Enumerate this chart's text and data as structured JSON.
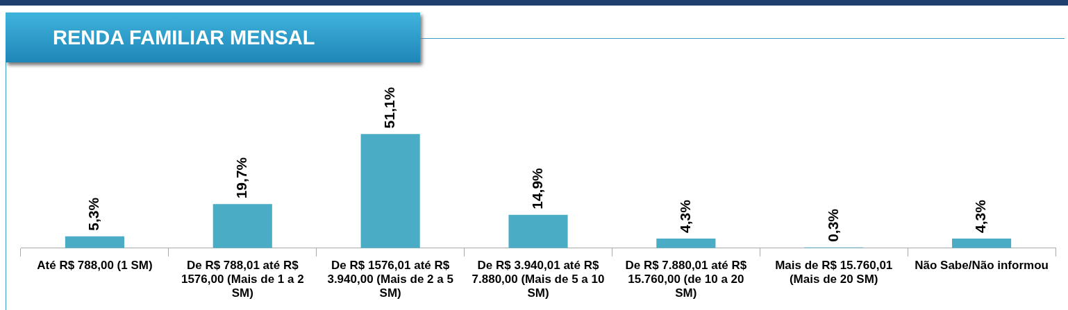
{
  "chart_data": {
    "type": "bar",
    "title": "RENDA FAMILIAR MENSAL",
    "categories": [
      "Até R$ 788,00 (1 SM)",
      "De R$ 788,01 até R$ 1576,00 (Mais de 1 a 2 SM)",
      "De R$ 1576,01 até R$ 3.940,00 (Mais de 2 a 5 SM)",
      "De R$ 3.940,01 até R$ 7.880,00 (Mais de 5 a 10 SM)",
      "De R$ 7.880,01 até R$ 15.760,00 (de 10 a 20 SM)",
      "Mais de R$ 15.760,01 (Mais de 20 SM)",
      "Não Sabe/Não informou"
    ],
    "values": [
      5.3,
      19.7,
      51.1,
      14.9,
      4.3,
      0.3,
      4.3
    ],
    "value_labels": [
      "5,3%",
      "19,7%",
      "51,1%",
      "14,9%",
      "4,3%",
      "0,3%",
      "4,3%"
    ],
    "color": "#4bacc6",
    "grid": false,
    "legend": false
  }
}
